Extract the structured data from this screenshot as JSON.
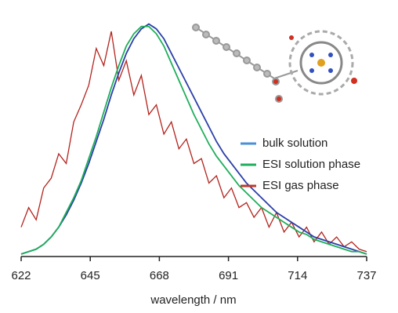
{
  "chart_data": {
    "type": "line",
    "x_label": "wavelength / nm",
    "x": [
      622,
      624.5,
      627,
      629.5,
      632,
      634.5,
      637,
      639.5,
      642,
      644.5,
      647,
      649.5,
      652,
      654.5,
      657,
      659.5,
      662,
      664.5,
      667,
      669.5,
      672,
      674.5,
      677,
      679.5,
      682,
      684.5,
      687,
      689.5,
      692,
      694.5,
      697,
      699.5,
      702,
      704.5,
      707,
      709.5,
      712,
      714.5,
      717,
      719.5,
      722,
      724.5,
      727,
      729.5,
      732,
      734.5,
      737
    ],
    "series": [
      {
        "name": "ESI gas phase",
        "color": "#b2231c",
        "values": [
          0.12,
          0.2,
          0.15,
          0.28,
          0.32,
          0.42,
          0.38,
          0.55,
          0.62,
          0.7,
          0.85,
          0.78,
          0.92,
          0.72,
          0.8,
          0.66,
          0.74,
          0.58,
          0.62,
          0.5,
          0.55,
          0.44,
          0.48,
          0.38,
          0.4,
          0.3,
          0.33,
          0.24,
          0.28,
          0.2,
          0.22,
          0.16,
          0.2,
          0.12,
          0.18,
          0.1,
          0.14,
          0.08,
          0.12,
          0.06,
          0.1,
          0.05,
          0.08,
          0.04,
          0.06,
          0.03,
          0.02
        ]
      },
      {
        "name": "bulk solution",
        "color": "#2a3fa8",
        "values": [
          0.01,
          0.02,
          0.03,
          0.05,
          0.08,
          0.12,
          0.17,
          0.23,
          0.3,
          0.38,
          0.47,
          0.56,
          0.66,
          0.75,
          0.83,
          0.89,
          0.93,
          0.95,
          0.93,
          0.89,
          0.83,
          0.77,
          0.71,
          0.65,
          0.59,
          0.53,
          0.47,
          0.42,
          0.38,
          0.34,
          0.3,
          0.27,
          0.24,
          0.21,
          0.18,
          0.16,
          0.14,
          0.12,
          0.1,
          0.08,
          0.07,
          0.06,
          0.05,
          0.04,
          0.03,
          0.02,
          0.01
        ]
      },
      {
        "name": "ESI solution phase",
        "color": "#1fae5a",
        "values": [
          0.01,
          0.02,
          0.03,
          0.05,
          0.08,
          0.12,
          0.18,
          0.24,
          0.31,
          0.4,
          0.49,
          0.59,
          0.69,
          0.78,
          0.86,
          0.91,
          0.94,
          0.94,
          0.91,
          0.86,
          0.79,
          0.72,
          0.65,
          0.58,
          0.52,
          0.46,
          0.41,
          0.37,
          0.33,
          0.29,
          0.26,
          0.23,
          0.2,
          0.18,
          0.16,
          0.14,
          0.12,
          0.1,
          0.09,
          0.07,
          0.06,
          0.05,
          0.04,
          0.03,
          0.02,
          0.02,
          0.01
        ]
      }
    ],
    "legend_order": [
      1,
      2,
      0
    ],
    "legend_swatch_colors": [
      "#4a90d9",
      "#1fae5a",
      "#c0392b"
    ],
    "xlim": [
      622,
      737
    ],
    "xticks": [
      622,
      645,
      668,
      691,
      714,
      737
    ],
    "ylim": [
      0,
      1
    ],
    "legend": "right"
  }
}
